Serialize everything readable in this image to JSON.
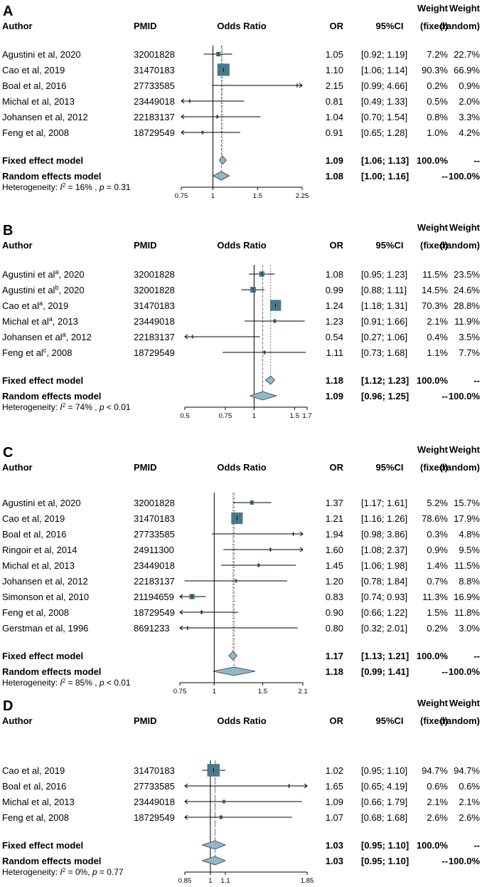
{
  "headers": {
    "author": "Author",
    "pmid": "PMID",
    "odds_ratio": "Odds Ratio",
    "or": "OR",
    "ci": "95%CI",
    "weight1": "Weight",
    "fixed": "(fixed)",
    "weight2": "Weight",
    "random": "(random)"
  },
  "colors": {
    "box": "#4a7a8a",
    "diamond": "#8fb8c8",
    "line": "#000000"
  },
  "chart_data": [
    {
      "type": "forest",
      "panel": "A",
      "scale": "log",
      "xlim": [
        0.75,
        2.25
      ],
      "ticks": [
        {
          "v": 0.75,
          "label": "0.75"
        },
        {
          "v": 1,
          "label": "1"
        },
        {
          "v": 1.5,
          "label": "1.5"
        },
        {
          "v": 2.25,
          "label": "2.25"
        }
      ],
      "studies": [
        {
          "author": "Agustini et al, 2020",
          "sup": "",
          "year": "",
          "pmid": "32001828",
          "or": 1.05,
          "lo": 0.92,
          "hi": 1.19,
          "or_text": "1.05",
          "ci_text": "[0.92; 1.19]",
          "wf_text": "7.2%",
          "wr_text": "22.7%",
          "wf": 7.2
        },
        {
          "author": "Cao et al, 2019",
          "sup": "",
          "year": "",
          "pmid": "31470183",
          "or": 1.1,
          "lo": 1.06,
          "hi": 1.14,
          "or_text": "1.10",
          "ci_text": "[1.06; 1.14]",
          "wf_text": "90.3%",
          "wr_text": "66.9%",
          "wf": 90.3
        },
        {
          "author": "Boal et al, 2016",
          "sup": "",
          "year": "",
          "pmid": "27733585",
          "or": 2.15,
          "lo": 0.99,
          "hi": 4.66,
          "or_text": "2.15",
          "ci_text": "[0.99; 4.66]",
          "wf_text": "0.2%",
          "wr_text": "0.9%",
          "wf": 0.2
        },
        {
          "author": "Michal et al, 2013",
          "sup": "",
          "year": "",
          "pmid": "23449018",
          "or": 0.81,
          "lo": 0.49,
          "hi": 1.33,
          "or_text": "0.81",
          "ci_text": "[0.49; 1.33]",
          "wf_text": "0.5%",
          "wr_text": "2.0%",
          "wf": 0.5
        },
        {
          "author": "Johansen et al, 2012",
          "sup": "",
          "year": "",
          "pmid": "22183137",
          "or": 1.04,
          "lo": 0.7,
          "hi": 1.54,
          "or_text": "1.04",
          "ci_text": "[0.70; 1.54]",
          "wf_text": "0.8%",
          "wr_text": "3.3%",
          "wf": 0.8
        },
        {
          "author": "Feng et al, 2008",
          "sup": "",
          "year": "",
          "pmid": "18729549",
          "or": 0.91,
          "lo": 0.65,
          "hi": 1.28,
          "or_text": "0.91",
          "ci_text": "[0.65; 1.28]",
          "wf_text": "1.0%",
          "wr_text": "4.2%",
          "wf": 1.0
        }
      ],
      "fixed": {
        "label": "Fixed effect model",
        "or": 1.09,
        "lo": 1.06,
        "hi": 1.13,
        "or_text": "1.09",
        "ci_text": "[1.06; 1.13]",
        "wf_text": "100.0%",
        "wr_text": "--"
      },
      "random": {
        "label": "Random effects model",
        "or": 1.08,
        "lo": 1.0,
        "hi": 1.16,
        "or_text": "1.08",
        "ci_text": "[1.00; 1.16]",
        "wf_text": "--",
        "wr_text": "100.0%"
      },
      "heterogeneity": {
        "prefix": "Heterogeneity: ",
        "i2": "I",
        "sup2": "2",
        "rest": " = 16% , ",
        "p": "p",
        "ptail": " = 0.31"
      }
    },
    {
      "type": "forest",
      "panel": "B",
      "scale": "log",
      "xlim": [
        0.5,
        1.7
      ],
      "ticks": [
        {
          "v": 0.5,
          "label": "0.5"
        },
        {
          "v": 0.75,
          "label": "0.75"
        },
        {
          "v": 1,
          "label": "1"
        },
        {
          "v": 1.5,
          "label": "1.5"
        },
        {
          "v": 1.7,
          "label": "1.7"
        }
      ],
      "studies": [
        {
          "author": "Agustini et al",
          "sup": "a",
          "year": ", 2020",
          "pmid": "32001828",
          "or": 1.08,
          "lo": 0.95,
          "hi": 1.23,
          "or_text": "1.08",
          "ci_text": "[0.95; 1.23]",
          "wf_text": "11.5%",
          "wr_text": "23.5%",
          "wf": 11.5
        },
        {
          "author": "Agustini et al",
          "sup": "b",
          "year": ", 2020",
          "pmid": "32001828",
          "or": 0.99,
          "lo": 0.88,
          "hi": 1.11,
          "or_text": "0.99",
          "ci_text": "[0.88; 1.11]",
          "wf_text": "14.5%",
          "wr_text": "24.6%",
          "wf": 14.5
        },
        {
          "author": "Cao et al",
          "sup": "a",
          "year": ", 2019",
          "pmid": "31470183",
          "or": 1.24,
          "lo": 1.18,
          "hi": 1.31,
          "or_text": "1.24",
          "ci_text": "[1.18; 1.31]",
          "wf_text": "70.3%",
          "wr_text": "28.8%",
          "wf": 70.3
        },
        {
          "author": "Michal et al",
          "sup": "a",
          "year": ", 2013",
          "pmid": "23449018",
          "or": 1.23,
          "lo": 0.91,
          "hi": 1.66,
          "or_text": "1.23",
          "ci_text": "[0.91; 1.66]",
          "wf_text": "2.1%",
          "wr_text": "11.9%",
          "wf": 2.1
        },
        {
          "author": "Johansen et al",
          "sup": "a",
          "year": ", 2012",
          "pmid": "22183137",
          "or": 0.54,
          "lo": 0.27,
          "hi": 1.06,
          "or_text": "0.54",
          "ci_text": "[0.27; 1.06]",
          "wf_text": "0.4%",
          "wr_text": "3.5%",
          "wf": 0.4
        },
        {
          "author": "Feng et al",
          "sup": "c",
          "year": ", 2008",
          "pmid": "18729549",
          "or": 1.11,
          "lo": 0.73,
          "hi": 1.68,
          "or_text": "1.11",
          "ci_text": "[0.73; 1.68]",
          "wf_text": "1.1%",
          "wr_text": "7.7%",
          "wf": 1.1
        }
      ],
      "fixed": {
        "label": "Fixed effect model",
        "or": 1.18,
        "lo": 1.12,
        "hi": 1.23,
        "or_text": "1.18",
        "ci_text": "[1.12; 1.23]",
        "wf_text": "100.0%",
        "wr_text": "--"
      },
      "random": {
        "label": "Random effects model",
        "or": 1.09,
        "lo": 0.96,
        "hi": 1.25,
        "or_text": "1.09",
        "ci_text": "[0.96; 1.25]",
        "wf_text": "--",
        "wr_text": "100.0%"
      },
      "heterogeneity": {
        "prefix": "Heterogeneity: ",
        "i2": "I",
        "sup2": "2",
        "rest": " = 74% , ",
        "p": "p",
        "ptail": " < 0.01"
      }
    },
    {
      "type": "forest",
      "panel": "C",
      "scale": "log",
      "xlim": [
        0.75,
        2.1
      ],
      "ticks": [
        {
          "v": 0.75,
          "label": "0.75"
        },
        {
          "v": 1,
          "label": "1"
        },
        {
          "v": 1.5,
          "label": "1.5"
        },
        {
          "v": 2.1,
          "label": "2.1"
        }
      ],
      "studies": [
        {
          "author": "Agustini et al, 2020",
          "sup": "",
          "year": "",
          "pmid": "32001828",
          "or": 1.37,
          "lo": 1.17,
          "hi": 1.61,
          "or_text": "1.37",
          "ci_text": "[1.17; 1.61]",
          "wf_text": "5.2%",
          "wr_text": "15.7%",
          "wf": 5.2
        },
        {
          "author": "Cao et al, 2019",
          "sup": "",
          "year": "",
          "pmid": "31470183",
          "or": 1.21,
          "lo": 1.16,
          "hi": 1.26,
          "or_text": "1.21",
          "ci_text": "[1.16; 1.26]",
          "wf_text": "78.6%",
          "wr_text": "17.9%",
          "wf": 78.6
        },
        {
          "author": "Boal et al, 2016",
          "sup": "",
          "year": "",
          "pmid": "27733585",
          "or": 1.94,
          "lo": 0.98,
          "hi": 3.86,
          "or_text": "1.94",
          "ci_text": "[0.98; 3.86]",
          "wf_text": "0.3%",
          "wr_text": "4.8%",
          "wf": 0.3
        },
        {
          "author": "Ringoir et al, 2014",
          "sup": "",
          "year": "",
          "pmid": "24911300",
          "or": 1.6,
          "lo": 1.08,
          "hi": 2.37,
          "or_text": "1.60",
          "ci_text": "[1.08; 2.37]",
          "wf_text": "0.9%",
          "wr_text": "9.5%",
          "wf": 0.9
        },
        {
          "author": "Michal et al, 2013",
          "sup": "",
          "year": "",
          "pmid": "23449018",
          "or": 1.45,
          "lo": 1.06,
          "hi": 1.98,
          "or_text": "1.45",
          "ci_text": "[1.06; 1.98]",
          "wf_text": "1.4%",
          "wr_text": "11.5%",
          "wf": 1.4
        },
        {
          "author": "Johansen et al, 2012",
          "sup": "",
          "year": "",
          "pmid": "22183137",
          "or": 1.2,
          "lo": 0.78,
          "hi": 1.84,
          "or_text": "1.20",
          "ci_text": "[0.78; 1.84]",
          "wf_text": "0.7%",
          "wr_text": "8.8%",
          "wf": 0.7
        },
        {
          "author": "Simonson et al, 2010",
          "sup": "",
          "year": "",
          "pmid": "21194659",
          "or": 0.83,
          "lo": 0.74,
          "hi": 0.93,
          "or_text": "0.83",
          "ci_text": "[0.74; 0.93]",
          "wf_text": "11.3%",
          "wr_text": "16.9%",
          "wf": 11.3
        },
        {
          "author": "Feng et al, 2008",
          "sup": "",
          "year": "",
          "pmid": "18729549",
          "or": 0.9,
          "lo": 0.66,
          "hi": 1.22,
          "or_text": "0.90",
          "ci_text": "[0.66; 1.22]",
          "wf_text": "1.5%",
          "wr_text": "11.8%",
          "wf": 1.5
        },
        {
          "author": "Gerstman et al, 1996",
          "sup": "",
          "year": "",
          "pmid": "8691233",
          "or": 0.8,
          "lo": 0.32,
          "hi": 2.01,
          "or_text": "0.80",
          "ci_text": "[0.32; 2.01]",
          "wf_text": "0.2%",
          "wr_text": "3.0%",
          "wf": 0.2
        }
      ],
      "fixed": {
        "label": "Fixed effect model",
        "or": 1.17,
        "lo": 1.13,
        "hi": 1.21,
        "or_text": "1.17",
        "ci_text": "[1.13; 1.21]",
        "wf_text": "100.0%",
        "wr_text": "--"
      },
      "random": {
        "label": "Random effects model",
        "or": 1.18,
        "lo": 0.99,
        "hi": 1.41,
        "or_text": "1.18",
        "ci_text": "[0.99; 1.41]",
        "wf_text": "--",
        "wr_text": "100.0%"
      },
      "heterogeneity": {
        "prefix": "Heterogeneity: ",
        "i2": "I",
        "sup2": "2",
        "rest": " = 85% , ",
        "p": "p",
        "ptail": " < 0.01"
      }
    },
    {
      "type": "forest",
      "panel": "D",
      "scale": "log",
      "xlim": [
        0.85,
        1.85
      ],
      "ticks": [
        {
          "v": 0.85,
          "label": "0.85"
        },
        {
          "v": 1,
          "label": "1"
        },
        {
          "v": 1.1,
          "label": "1.1"
        },
        {
          "v": 1.85,
          "label": "1.85"
        }
      ],
      "studies": [
        {
          "author": "Cao et al, 2019",
          "sup": "",
          "year": "",
          "pmid": "31470183",
          "or": 1.02,
          "lo": 0.95,
          "hi": 1.1,
          "or_text": "1.02",
          "ci_text": "[0.95; 1.10]",
          "wf_text": "94.7%",
          "wr_text": "94.7%",
          "wf": 94.7
        },
        {
          "author": "Boal et al, 2016",
          "sup": "",
          "year": "",
          "pmid": "27733585",
          "or": 1.65,
          "lo": 0.65,
          "hi": 4.19,
          "or_text": "1.65",
          "ci_text": "[0.65; 4.19]",
          "wf_text": "0.6%",
          "wr_text": "0.6%",
          "wf": 0.6
        },
        {
          "author": "Michal et al, 2013",
          "sup": "",
          "year": "",
          "pmid": "23449018",
          "or": 1.09,
          "lo": 0.66,
          "hi": 1.79,
          "or_text": "1.09",
          "ci_text": "[0.66; 1.79]",
          "wf_text": "2.1%",
          "wr_text": "2.1%",
          "wf": 2.1
        },
        {
          "author": "Feng et al, 2008",
          "sup": "",
          "year": "",
          "pmid": "18729549",
          "or": 1.07,
          "lo": 0.68,
          "hi": 1.68,
          "or_text": "1.07",
          "ci_text": "[0.68; 1.68]",
          "wf_text": "2.6%",
          "wr_text": "2.6%",
          "wf": 2.6
        }
      ],
      "fixed": {
        "label": "Fixed effect model",
        "or": 1.03,
        "lo": 0.95,
        "hi": 1.1,
        "or_text": "1.03",
        "ci_text": "[0.95; 1.10]",
        "wf_text": "100.0%",
        "wr_text": "--"
      },
      "random": {
        "label": "Random effects model",
        "or": 1.03,
        "lo": 0.95,
        "hi": 1.1,
        "or_text": "1.03",
        "ci_text": "[0.95; 1.10]",
        "wf_text": "--",
        "wr_text": "100.0%"
      },
      "heterogeneity": {
        "prefix": "Heterogeneity: ",
        "i2": "I",
        "sup2": "2",
        "rest": " = 0%, ",
        "p": "p",
        "ptail": " = 0.77"
      }
    }
  ]
}
